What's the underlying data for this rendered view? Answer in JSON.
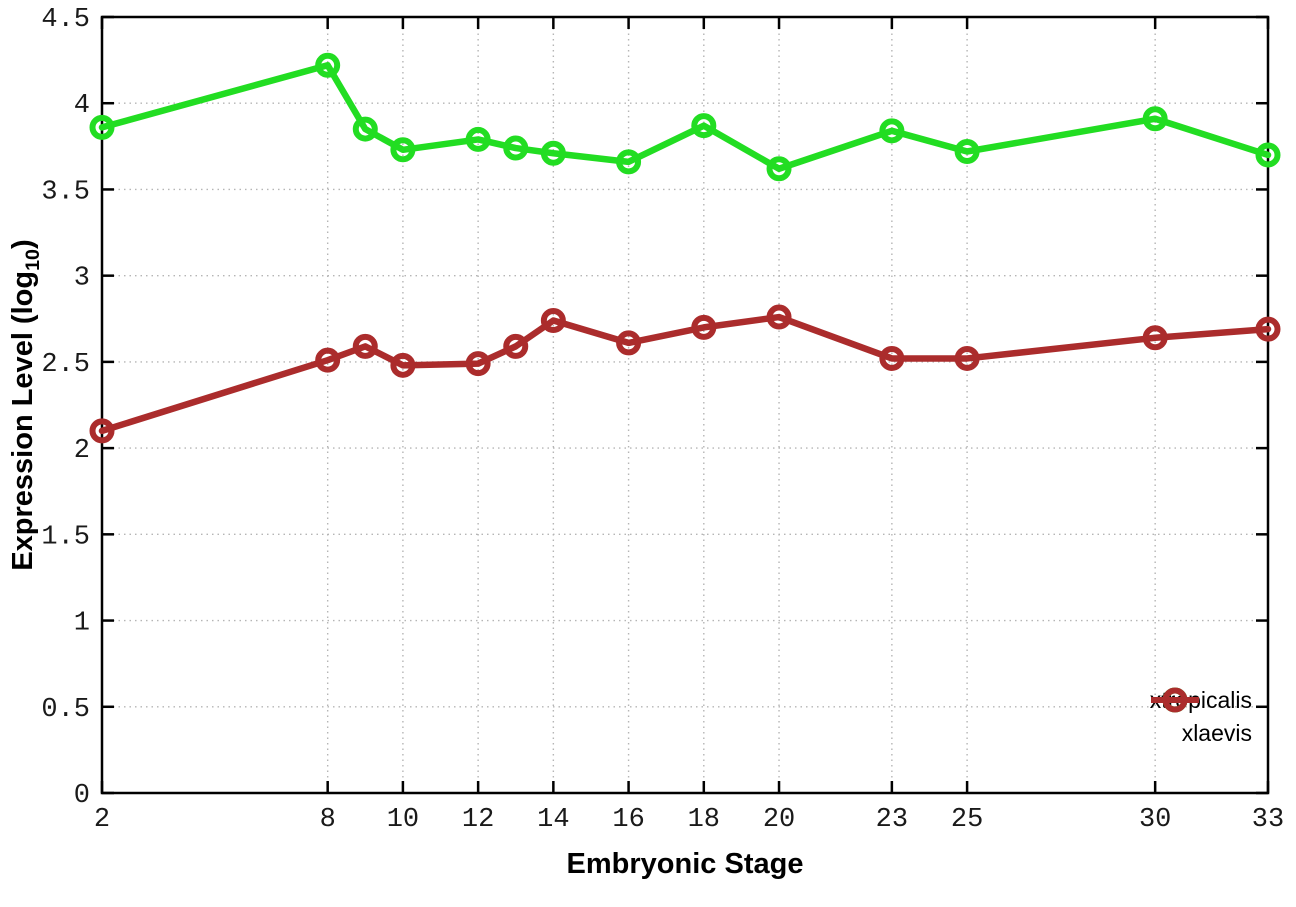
{
  "style": {
    "background": "#ffffff",
    "axis_color": "#000000",
    "grid_color": "#b5b5b5",
    "tick_text_color": "#1a1a1a"
  },
  "chart_data": {
    "type": "line",
    "title": "",
    "xlabel": "Embryonic Stage",
    "ylabel": {
      "prefix": "Expression Level (log",
      "sub": "10",
      "suffix": ")"
    },
    "xlim": [
      2,
      33
    ],
    "ylim": [
      0,
      4.5
    ],
    "x_ticks": [
      2,
      8,
      10,
      12,
      14,
      16,
      18,
      20,
      23,
      25,
      30,
      33
    ],
    "y_ticks": [
      0,
      0.5,
      1,
      1.5,
      2,
      2.5,
      3,
      3.5,
      4,
      4.5
    ],
    "grid": true,
    "legend_position": "bottom-right",
    "x": [
      2,
      8,
      9,
      10,
      12,
      13,
      14,
      16,
      18,
      20,
      23,
      25,
      30,
      33
    ],
    "series": [
      {
        "name": "xtropicalis",
        "color": "#22dd22",
        "values": [
          3.86,
          4.22,
          3.85,
          3.73,
          3.79,
          3.74,
          3.71,
          3.66,
          3.87,
          3.62,
          3.84,
          3.72,
          3.91,
          3.7
        ]
      },
      {
        "name": "xlaevis",
        "color": "#ab2c2c",
        "values": [
          2.1,
          2.51,
          2.59,
          2.48,
          2.49,
          2.59,
          2.74,
          2.61,
          2.7,
          2.76,
          2.52,
          2.52,
          2.64,
          2.69
        ]
      }
    ]
  }
}
